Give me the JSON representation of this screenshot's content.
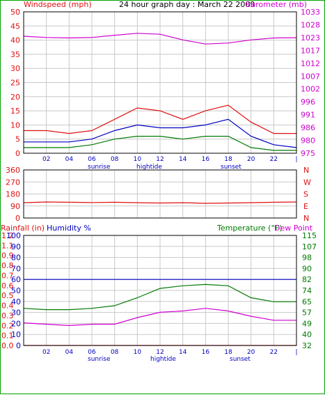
{
  "colors": {
    "red": "#e01010",
    "magenta": "#d000d0",
    "green": "#007a00",
    "blue": "#0000c0",
    "black": "#000000",
    "grid": "#c8c8c8",
    "border": "#00a000"
  },
  "chart_data": [
    {
      "type": "line",
      "title": "24 hour graph day : March 22 2009",
      "left_label": "Windspeed (mph)",
      "right_label": "Barometer (mb)",
      "x_tick_labels": [
        "02",
        "04",
        "06",
        "08",
        "10",
        "12",
        "14",
        "16",
        "18",
        "20",
        "22",
        "|"
      ],
      "x_event_labels": [
        "sunrise",
        "hightide",
        "sunset"
      ],
      "left_ticks": [
        "50",
        "45",
        "40",
        "35",
        "30",
        "25",
        "20",
        "15",
        "10",
        "5",
        "0"
      ],
      "right_ticks": [
        "1033",
        "1028",
        "1023",
        "1017",
        "1012",
        "1007",
        "1002",
        "996",
        "991",
        "986",
        "980",
        "975"
      ],
      "x": [
        0,
        2,
        4,
        6,
        8,
        10,
        12,
        14,
        16,
        18,
        20,
        22,
        24
      ],
      "ylim": [
        0,
        50
      ],
      "y2lim": [
        975,
        1033
      ],
      "grid": true,
      "series": [
        {
          "axis": "left",
          "color": "red",
          "values": [
            8,
            8,
            7,
            8,
            12,
            16,
            15,
            12,
            15,
            17,
            11,
            7,
            7
          ]
        },
        {
          "axis": "left",
          "color": "blue",
          "values": [
            4,
            4,
            4,
            5,
            8,
            10,
            9,
            9,
            10,
            12,
            6,
            3,
            2
          ]
        },
        {
          "axis": "left",
          "color": "green",
          "values": [
            2,
            2,
            2,
            3,
            5,
            6,
            6,
            5,
            6,
            6,
            2,
            1,
            1
          ]
        },
        {
          "axis": "right",
          "color": "magenta",
          "values": [
            1023,
            1022.5,
            1022.3,
            1022.5,
            1023.4,
            1024.2,
            1023.8,
            1021.5,
            1019.8,
            1020.2,
            1021.5,
            1022.3,
            1022.4
          ]
        }
      ]
    },
    {
      "type": "line",
      "left_ticks": [
        "360",
        "270",
        "180",
        "90",
        "0"
      ],
      "right_labels": [
        "N",
        "W",
        "S",
        "E",
        "N"
      ],
      "x": [
        0,
        2,
        4,
        6,
        8,
        10,
        12,
        14,
        16,
        18,
        20,
        22,
        24
      ],
      "ylim": [
        0,
        360
      ],
      "grid": true,
      "series": [
        {
          "axis": "left",
          "color": "red",
          "values": [
            115,
            120,
            118,
            116,
            118,
            115,
            112,
            115,
            110,
            112,
            115,
            118,
            120
          ]
        }
      ]
    },
    {
      "type": "line",
      "labels": {
        "rainfall": "Rainfall (in)",
        "humidity": "Humidity %",
        "temperature": "Temperature (°F)",
        "dewpoint": "Dew Point"
      },
      "rain_ticks": [
        "1.2",
        "1.1",
        "0.9",
        "0.8",
        "0.7",
        "0.6",
        "0.5",
        "0.4",
        "0.3",
        "0.2",
        "0.1",
        "0.0"
      ],
      "humidity_ticks": [
        "100",
        "90",
        "80",
        "70",
        "60",
        "50",
        "40",
        "30",
        "20",
        "10",
        "0"
      ],
      "temp_ticks": [
        "115",
        "107",
        "98",
        "90",
        "82",
        "74",
        "65",
        "57",
        "49",
        "40",
        "32"
      ],
      "x_tick_labels": [
        "02",
        "04",
        "06",
        "08",
        "10",
        "12",
        "14",
        "16",
        "18",
        "20",
        "22",
        "|"
      ],
      "x_event_labels": [
        "sunrise",
        "hightide",
        "sunset"
      ],
      "x": [
        0,
        2,
        4,
        6,
        8,
        10,
        12,
        14,
        16,
        18,
        20,
        22,
        24
      ],
      "ylim": [
        0,
        100
      ],
      "y2lim": [
        32,
        115
      ],
      "grid": true,
      "series": [
        {
          "axis": "left",
          "name": "Humidity %",
          "color": "blue",
          "values": [
            60,
            60,
            60,
            60,
            60,
            60,
            60,
            60,
            60,
            60,
            60,
            60,
            60
          ]
        },
        {
          "axis": "right",
          "name": "Temperature (°F)",
          "color": "green",
          "values": [
            60,
            59,
            59,
            60,
            62,
            68,
            75,
            77,
            78,
            77,
            68,
            65,
            65
          ]
        },
        {
          "axis": "right",
          "name": "Dew Point",
          "color": "magenta",
          "values": [
            49,
            48,
            47,
            48,
            48,
            53,
            57,
            58,
            60,
            58,
            54,
            51,
            51
          ]
        },
        {
          "axis": "left",
          "name": "Rainfall (in)",
          "color": "red",
          "values": [
            0,
            0,
            0,
            0,
            0,
            0,
            0,
            0,
            0,
            0,
            0,
            0,
            0
          ]
        }
      ]
    }
  ]
}
